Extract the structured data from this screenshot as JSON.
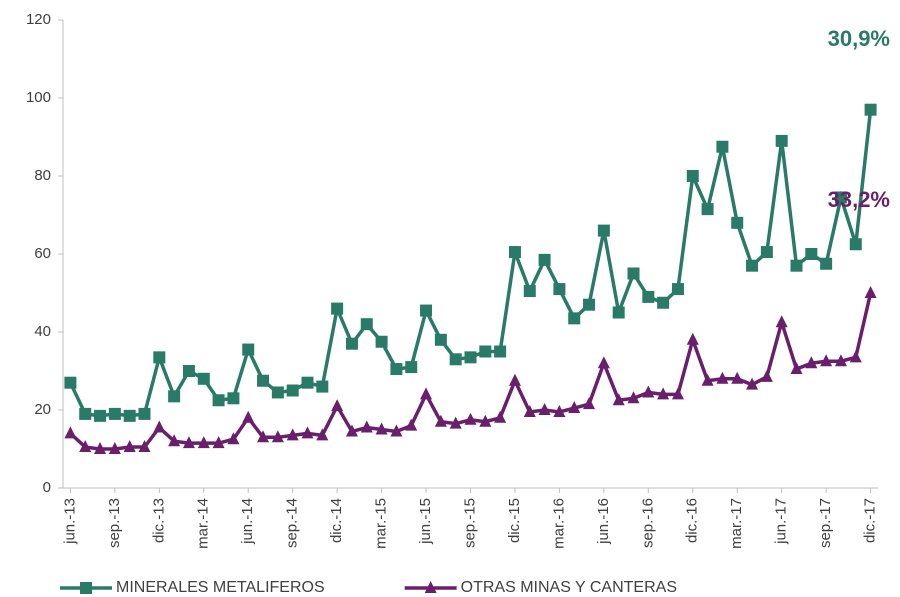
{
  "chart_data": {
    "type": "line",
    "categories": [
      "jun.-13",
      null,
      null,
      "sep.-13",
      null,
      null,
      "dic.-13",
      null,
      null,
      "mar.-14",
      null,
      null,
      "jun.-14",
      null,
      null,
      "sep.-14",
      null,
      null,
      "dic.-14",
      null,
      null,
      "mar.-15",
      null,
      null,
      "jun.-15",
      null,
      null,
      "sep.-15",
      null,
      null,
      "dic.-15",
      null,
      null,
      "mar.-16",
      null,
      null,
      "jun.-16",
      null,
      null,
      "sep.-16",
      null,
      null,
      "dic.-16",
      null,
      null,
      "mar.-17",
      null,
      null,
      "jun.-17",
      null,
      null,
      "sep.-17",
      null,
      null,
      "dic.-17"
    ],
    "series": [
      {
        "name": "MINERALES METALIFEROS",
        "color": "#2a7a68",
        "marker": "square",
        "values": [
          27,
          19,
          18.5,
          19,
          18.5,
          19,
          33.5,
          23.5,
          30,
          28,
          22.5,
          23,
          35.5,
          27.5,
          24.5,
          25,
          27,
          26,
          46,
          37,
          42,
          37.5,
          30.5,
          31,
          45.5,
          38,
          33,
          33.5,
          35,
          35,
          60.5,
          50.5,
          58.5,
          51,
          43.5,
          47,
          66,
          45,
          55,
          49,
          47.5,
          51,
          80,
          71.5,
          87.5,
          68,
          57,
          60.5,
          89,
          57,
          60,
          57.5,
          74.5,
          62.5,
          97
        ]
      },
      {
        "name": "OTRAS MINAS Y CANTERAS",
        "color": "#6a1f6c",
        "marker": "triangle",
        "values": [
          14,
          10.5,
          10,
          10,
          10.5,
          10.5,
          15.5,
          12,
          11.5,
          11.5,
          11.5,
          12.5,
          18,
          13,
          13,
          13.5,
          14,
          13.5,
          21,
          14.5,
          15.5,
          15,
          14.5,
          16,
          24,
          17,
          16.5,
          17.5,
          17,
          18,
          27.5,
          19.5,
          20,
          19.5,
          20.5,
          21.5,
          32,
          22.5,
          23,
          24.5,
          24,
          24,
          38,
          27.5,
          28,
          28,
          26.5,
          28.5,
          42.5,
          30.5,
          32,
          32.5,
          32.5,
          33.5,
          50
        ]
      }
    ],
    "annotations": [
      {
        "text": "30,9%",
        "series": 0
      },
      {
        "text": "33,2%",
        "series": 1
      }
    ],
    "ylim": [
      0,
      120
    ],
    "yticks": [
      0,
      20,
      40,
      60,
      80,
      100,
      120
    ],
    "legend": "bottom"
  }
}
